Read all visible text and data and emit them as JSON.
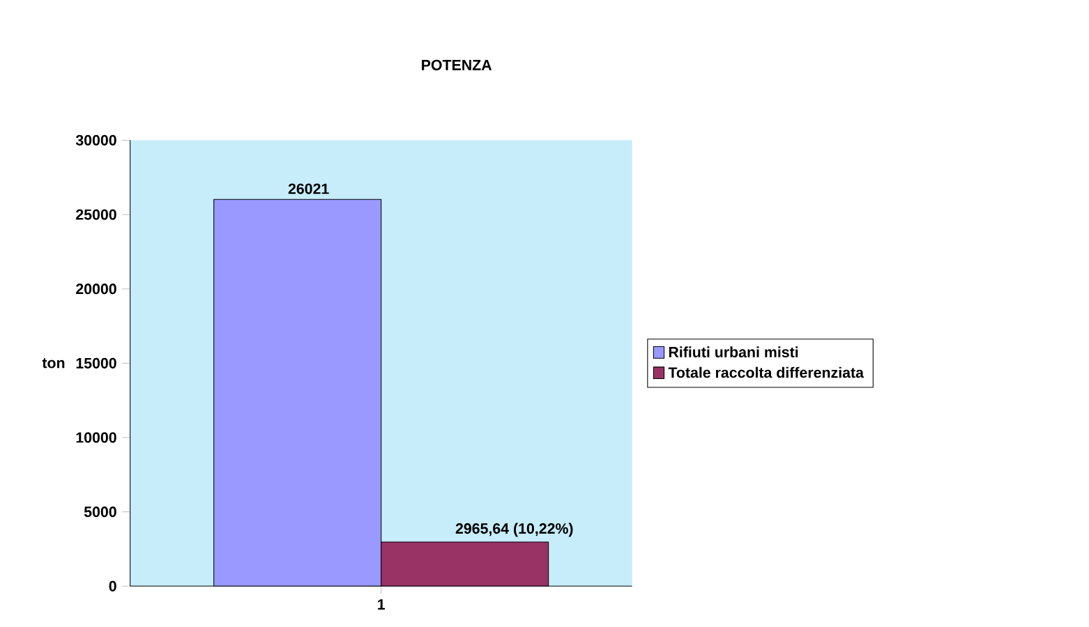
{
  "chart_data": {
    "type": "bar",
    "title": "POTENZA",
    "ylabel": "ton",
    "categories": [
      "1"
    ],
    "series": [
      {
        "name": "Rifiuti urbani misti",
        "color": "#9999ff",
        "values": [
          26021
        ],
        "value_labels": [
          "26021"
        ]
      },
      {
        "name": "Totale raccolta differenziata",
        "color": "#993366",
        "values": [
          2965.64
        ],
        "value_labels": [
          "2965,64 (10,22%)"
        ]
      }
    ],
    "ylim": [
      0,
      30000
    ],
    "yticks": [
      0,
      5000,
      10000,
      15000,
      20000,
      25000,
      30000
    ],
    "legend": "right"
  }
}
